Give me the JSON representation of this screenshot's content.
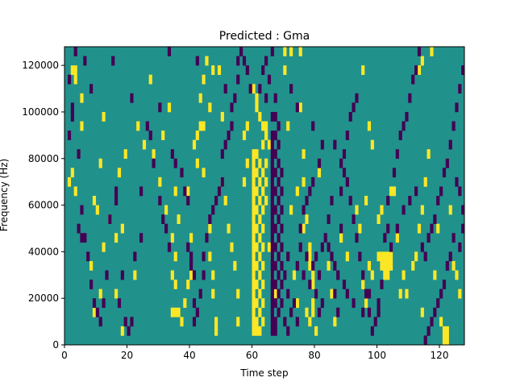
{
  "chart_data": {
    "type": "heatmap",
    "title": "Predicted : Gma",
    "xlabel": "Time step",
    "ylabel": "Frequency (Hz)",
    "xlim": [
      0,
      128
    ],
    "ylim": [
      0,
      128000
    ],
    "x_ticks": [
      0,
      20,
      40,
      60,
      80,
      100,
      120
    ],
    "y_ticks": [
      0,
      20000,
      40000,
      60000,
      80000,
      100000,
      120000
    ],
    "n_time_steps": 128,
    "n_freq_bins": 128,
    "freq_bin_hz": 1000,
    "colors": {
      "background": "#21918c",
      "high": "#fde725",
      "low": "#440154"
    },
    "grid": false,
    "description_values": "Cell values in {-1, 0, 1}: 0 = teal background, 1 = yellow, -1 = dark purple. Cells listed below are non-zero; time steps as integers, frequency bins as integer index (bin k spans k*1000 to (k+1)*1000 Hz).",
    "high_cells": [
      [
        2,
        116
      ],
      [
        3,
        116
      ],
      [
        3,
        112
      ],
      [
        5,
        104
      ],
      [
        5,
        92
      ],
      [
        2,
        72
      ],
      [
        1,
        68
      ],
      [
        3,
        64
      ],
      [
        9,
        60
      ],
      [
        10,
        56
      ],
      [
        14,
        52
      ],
      [
        18,
        48
      ],
      [
        16,
        44
      ],
      [
        12,
        40
      ],
      [
        8,
        32
      ],
      [
        11,
        20
      ],
      [
        9,
        12
      ],
      [
        16,
        20
      ],
      [
        18,
        4
      ],
      [
        22,
        28
      ],
      [
        25,
        84
      ],
      [
        28,
        80
      ],
      [
        31,
        88
      ],
      [
        30,
        68
      ],
      [
        33,
        100
      ],
      [
        32,
        56
      ],
      [
        35,
        64
      ],
      [
        36,
        52
      ],
      [
        34,
        44
      ],
      [
        35,
        36
      ],
      [
        34,
        28
      ],
      [
        35,
        24
      ],
      [
        35,
        12
      ],
      [
        34,
        12
      ],
      [
        36,
        12
      ],
      [
        37,
        8
      ],
      [
        38,
        16
      ],
      [
        39,
        24
      ],
      [
        40,
        28
      ],
      [
        40,
        44
      ],
      [
        39,
        64
      ],
      [
        41,
        84
      ],
      [
        42,
        88
      ],
      [
        43,
        92
      ],
      [
        42,
        76
      ],
      [
        44,
        72
      ],
      [
        45,
        120
      ],
      [
        44,
        112
      ],
      [
        46,
        100
      ],
      [
        46,
        48
      ],
      [
        46,
        36
      ],
      [
        47,
        28
      ],
      [
        47,
        20
      ],
      [
        48,
        8
      ],
      [
        48,
        4
      ],
      [
        50,
        96
      ],
      [
        50,
        68
      ],
      [
        51,
        60
      ],
      [
        52,
        48
      ],
      [
        53,
        40
      ],
      [
        54,
        32
      ],
      [
        55,
        20
      ],
      [
        55,
        8
      ],
      [
        57,
        88
      ],
      [
        57,
        68
      ],
      [
        58,
        76
      ],
      [
        60,
        80
      ],
      [
        60,
        76
      ],
      [
        60,
        72
      ],
      [
        60,
        68
      ],
      [
        60,
        64
      ],
      [
        60,
        60
      ],
      [
        60,
        56
      ],
      [
        60,
        52
      ],
      [
        60,
        48
      ],
      [
        60,
        44
      ],
      [
        60,
        40
      ],
      [
        60,
        36
      ],
      [
        60,
        32
      ],
      [
        60,
        28
      ],
      [
        60,
        24
      ],
      [
        60,
        20
      ],
      [
        60,
        16
      ],
      [
        60,
        12
      ],
      [
        60,
        8
      ],
      [
        60,
        4
      ],
      [
        61,
        80
      ],
      [
        61,
        72
      ],
      [
        61,
        64
      ],
      [
        61,
        56
      ],
      [
        61,
        48
      ],
      [
        61,
        40
      ],
      [
        61,
        32
      ],
      [
        61,
        24
      ],
      [
        61,
        16
      ],
      [
        61,
        8
      ],
      [
        61,
        4
      ],
      [
        62,
        76
      ],
      [
        62,
        68
      ],
      [
        62,
        60
      ],
      [
        62,
        52
      ],
      [
        62,
        44
      ],
      [
        62,
        36
      ],
      [
        62,
        28
      ],
      [
        62,
        20
      ],
      [
        62,
        12
      ],
      [
        62,
        4
      ],
      [
        63,
        84
      ],
      [
        63,
        72
      ],
      [
        63,
        64
      ],
      [
        63,
        56
      ],
      [
        63,
        48
      ],
      [
        63,
        40
      ],
      [
        63,
        32
      ],
      [
        63,
        24
      ],
      [
        63,
        16
      ],
      [
        63,
        8
      ],
      [
        60,
        108
      ],
      [
        61,
        104
      ],
      [
        62,
        96
      ],
      [
        63,
        92
      ],
      [
        64,
        88
      ],
      [
        65,
        84
      ],
      [
        64,
        76
      ],
      [
        64,
        68
      ],
      [
        64,
        60
      ],
      [
        65,
        40
      ],
      [
        66,
        36
      ],
      [
        66,
        28
      ],
      [
        67,
        20
      ],
      [
        58,
        92
      ],
      [
        61,
        100
      ],
      [
        64,
        92
      ],
      [
        71,
        92
      ],
      [
        75,
        100
      ],
      [
        76,
        80
      ],
      [
        76,
        68
      ],
      [
        77,
        52
      ],
      [
        76,
        48
      ],
      [
        78,
        40
      ],
      [
        78,
        36
      ],
      [
        78,
        32
      ],
      [
        79,
        28
      ],
      [
        79,
        24
      ],
      [
        80,
        20
      ],
      [
        79,
        16
      ],
      [
        79,
        12
      ],
      [
        78,
        8
      ],
      [
        80,
        4
      ],
      [
        77,
        12
      ],
      [
        74,
        16
      ],
      [
        73,
        28
      ],
      [
        72,
        56
      ],
      [
        74,
        64
      ],
      [
        81,
        72
      ],
      [
        84,
        32
      ],
      [
        85,
        20
      ],
      [
        86,
        8
      ],
      [
        88,
        44
      ],
      [
        90,
        36
      ],
      [
        93,
        56
      ],
      [
        94,
        48
      ],
      [
        95,
        24
      ],
      [
        96,
        16
      ],
      [
        97,
        32
      ],
      [
        96,
        60
      ],
      [
        98,
        28
      ],
      [
        100,
        36
      ],
      [
        101,
        36
      ],
      [
        101,
        32
      ],
      [
        102,
        36
      ],
      [
        102,
        32
      ],
      [
        103,
        36
      ],
      [
        103,
        32
      ],
      [
        104,
        36
      ],
      [
        104,
        32
      ],
      [
        102,
        28
      ],
      [
        103,
        28
      ],
      [
        100,
        52
      ],
      [
        101,
        56
      ],
      [
        104,
        64
      ],
      [
        105,
        64
      ],
      [
        106,
        44
      ],
      [
        107,
        20
      ],
      [
        108,
        28
      ],
      [
        109,
        20
      ],
      [
        111,
        32
      ],
      [
        112,
        36
      ],
      [
        113,
        48
      ],
      [
        114,
        56
      ],
      [
        114,
        12
      ],
      [
        115,
        68
      ],
      [
        118,
        28
      ],
      [
        119,
        48
      ],
      [
        120,
        8
      ],
      [
        121,
        4
      ],
      [
        122,
        4
      ],
      [
        121,
        0
      ],
      [
        122,
        0
      ],
      [
        123,
        56
      ],
      [
        124,
        32
      ],
      [
        125,
        28
      ],
      [
        126,
        20
      ],
      [
        116,
        80
      ],
      [
        113,
        116
      ],
      [
        114,
        120
      ],
      [
        117,
        124
      ],
      [
        70,
        116
      ],
      [
        70,
        124
      ],
      [
        75,
        124
      ],
      [
        72,
        124
      ],
      [
        95,
        116
      ],
      [
        98,
        84
      ],
      [
        97,
        92
      ],
      [
        47,
        116
      ],
      [
        49,
        116
      ],
      [
        44,
        92
      ],
      [
        43,
        104
      ],
      [
        17,
        72
      ],
      [
        19,
        80
      ],
      [
        23,
        92
      ],
      [
        27,
        112
      ],
      [
        12,
        96
      ],
      [
        11,
        76
      ]
    ],
    "low_cells": [
      [
        2,
        100
      ],
      [
        1,
        88
      ],
      [
        2,
        96
      ],
      [
        4,
        80
      ],
      [
        5,
        56
      ],
      [
        4,
        48
      ],
      [
        5,
        44
      ],
      [
        6,
        44
      ],
      [
        7,
        36
      ],
      [
        8,
        24
      ],
      [
        9,
        16
      ],
      [
        10,
        12
      ],
      [
        11,
        8
      ],
      [
        12,
        16
      ],
      [
        13,
        28
      ],
      [
        14,
        52
      ],
      [
        16,
        64
      ],
      [
        16,
        60
      ],
      [
        18,
        28
      ],
      [
        17,
        16
      ],
      [
        19,
        8
      ],
      [
        20,
        4
      ],
      [
        21,
        8
      ],
      [
        22,
        36
      ],
      [
        24,
        44
      ],
      [
        24,
        64
      ],
      [
        26,
        92
      ],
      [
        27,
        88
      ],
      [
        28,
        76
      ],
      [
        30,
        60
      ],
      [
        31,
        52
      ],
      [
        32,
        48
      ],
      [
        33,
        40
      ],
      [
        34,
        80
      ],
      [
        35,
        76
      ],
      [
        37,
        72
      ],
      [
        38,
        64
      ],
      [
        39,
        60
      ],
      [
        39,
        40
      ],
      [
        40,
        36
      ],
      [
        40,
        32
      ],
      [
        41,
        28
      ],
      [
        41,
        16
      ],
      [
        41,
        8
      ],
      [
        42,
        12
      ],
      [
        43,
        20
      ],
      [
        44,
        28
      ],
      [
        44,
        36
      ],
      [
        45,
        44
      ],
      [
        46,
        52
      ],
      [
        47,
        56
      ],
      [
        48,
        60
      ],
      [
        49,
        64
      ],
      [
        50,
        68
      ],
      [
        50,
        80
      ],
      [
        51,
        84
      ],
      [
        52,
        88
      ],
      [
        53,
        92
      ],
      [
        53,
        100
      ],
      [
        54,
        104
      ],
      [
        55,
        112
      ],
      [
        55,
        120
      ],
      [
        56,
        124
      ],
      [
        57,
        120
      ],
      [
        58,
        116
      ],
      [
        59,
        108
      ],
      [
        62,
        108
      ],
      [
        63,
        116
      ],
      [
        64,
        120
      ],
      [
        66,
        124
      ],
      [
        67,
        104
      ],
      [
        66,
        96
      ],
      [
        66,
        88
      ],
      [
        66,
        84
      ],
      [
        66,
        80
      ],
      [
        66,
        76
      ],
      [
        66,
        72
      ],
      [
        66,
        68
      ],
      [
        66,
        64
      ],
      [
        66,
        60
      ],
      [
        66,
        56
      ],
      [
        66,
        52
      ],
      [
        66,
        48
      ],
      [
        66,
        44
      ],
      [
        66,
        40
      ],
      [
        66,
        36
      ],
      [
        66,
        32
      ],
      [
        66,
        28
      ],
      [
        66,
        24
      ],
      [
        66,
        20
      ],
      [
        66,
        16
      ],
      [
        66,
        12
      ],
      [
        66,
        8
      ],
      [
        66,
        4
      ],
      [
        67,
        96
      ],
      [
        67,
        88
      ],
      [
        67,
        80
      ],
      [
        67,
        72
      ],
      [
        67,
        64
      ],
      [
        67,
        56
      ],
      [
        67,
        48
      ],
      [
        67,
        40
      ],
      [
        67,
        32
      ],
      [
        67,
        24
      ],
      [
        67,
        16
      ],
      [
        67,
        8
      ],
      [
        67,
        4
      ],
      [
        68,
        92
      ],
      [
        68,
        84
      ],
      [
        68,
        76
      ],
      [
        68,
        68
      ],
      [
        68,
        60
      ],
      [
        68,
        52
      ],
      [
        68,
        44
      ],
      [
        68,
        36
      ],
      [
        68,
        28
      ],
      [
        68,
        20
      ],
      [
        68,
        12
      ],
      [
        69,
        72
      ],
      [
        69,
        64
      ],
      [
        69,
        56
      ],
      [
        69,
        48
      ],
      [
        69,
        40
      ],
      [
        69,
        32
      ],
      [
        69,
        24
      ],
      [
        69,
        16
      ],
      [
        70,
        8
      ],
      [
        71,
        4
      ],
      [
        70,
        28
      ],
      [
        71,
        36
      ],
      [
        71,
        20
      ],
      [
        72,
        12
      ],
      [
        73,
        16
      ],
      [
        74,
        8
      ],
      [
        74,
        32
      ],
      [
        75,
        40
      ],
      [
        75,
        48
      ],
      [
        76,
        28
      ],
      [
        76,
        56
      ],
      [
        77,
        36
      ],
      [
        78,
        24
      ],
      [
        79,
        32
      ],
      [
        80,
        36
      ],
      [
        80,
        20
      ],
      [
        81,
        28
      ],
      [
        81,
        12
      ],
      [
        82,
        16
      ],
      [
        82,
        40
      ],
      [
        83,
        44
      ],
      [
        84,
        40
      ],
      [
        84,
        52
      ],
      [
        85,
        60
      ],
      [
        85,
        36
      ],
      [
        86,
        20
      ],
      [
        86,
        32
      ],
      [
        87,
        28
      ],
      [
        87,
        12
      ],
      [
        88,
        48
      ],
      [
        88,
        64
      ],
      [
        89,
        72
      ],
      [
        89,
        80
      ],
      [
        90,
        88
      ],
      [
        91,
        96
      ],
      [
        92,
        100
      ],
      [
        93,
        104
      ],
      [
        86,
        84
      ],
      [
        88,
        76
      ],
      [
        90,
        68
      ],
      [
        91,
        60
      ],
      [
        92,
        52
      ],
      [
        93,
        44
      ],
      [
        94,
        36
      ],
      [
        95,
        28
      ],
      [
        96,
        20
      ],
      [
        97,
        12
      ],
      [
        98,
        4
      ],
      [
        99,
        8
      ],
      [
        100,
        16
      ],
      [
        101,
        24
      ],
      [
        102,
        44
      ],
      [
        103,
        48
      ],
      [
        103,
        60
      ],
      [
        105,
        72
      ],
      [
        106,
        80
      ],
      [
        107,
        88
      ],
      [
        108,
        92
      ],
      [
        109,
        96
      ],
      [
        110,
        104
      ],
      [
        111,
        112
      ],
      [
        112,
        116
      ],
      [
        113,
        124
      ],
      [
        114,
        40
      ],
      [
        115,
        36
      ],
      [
        116,
        44
      ],
      [
        117,
        48
      ],
      [
        118,
        52
      ],
      [
        119,
        60
      ],
      [
        120,
        64
      ],
      [
        121,
        72
      ],
      [
        122,
        76
      ],
      [
        123,
        84
      ],
      [
        124,
        92
      ],
      [
        125,
        100
      ],
      [
        126,
        108
      ],
      [
        127,
        116
      ],
      [
        127,
        56
      ],
      [
        126,
        64
      ],
      [
        125,
        68
      ],
      [
        124,
        44
      ],
      [
        123,
        36
      ],
      [
        122,
        32
      ],
      [
        121,
        24
      ],
      [
        120,
        20
      ],
      [
        119,
        16
      ],
      [
        118,
        12
      ],
      [
        117,
        8
      ],
      [
        116,
        4
      ],
      [
        115,
        0
      ],
      [
        127,
        48
      ],
      [
        126,
        40
      ],
      [
        112,
        64
      ],
      [
        110,
        60
      ],
      [
        108,
        56
      ],
      [
        106,
        48
      ],
      [
        104,
        40
      ],
      [
        100,
        12
      ],
      [
        97,
        20
      ],
      [
        95,
        12
      ],
      [
        92,
        16
      ],
      [
        90,
        20
      ],
      [
        89,
        24
      ],
      [
        77,
        60
      ],
      [
        78,
        64
      ],
      [
        79,
        68
      ],
      [
        81,
        76
      ],
      [
        82,
        84
      ],
      [
        79,
        92
      ],
      [
        74,
        100
      ],
      [
        72,
        108
      ],
      [
        64,
        104
      ],
      [
        65,
        112
      ],
      [
        33,
        124
      ],
      [
        42,
        120
      ],
      [
        51,
        108
      ],
      [
        30,
        100
      ],
      [
        21,
        104
      ],
      [
        15,
        120
      ],
      [
        8,
        108
      ],
      [
        6,
        120
      ],
      [
        3,
        124
      ],
      [
        1,
        112
      ]
    ]
  }
}
